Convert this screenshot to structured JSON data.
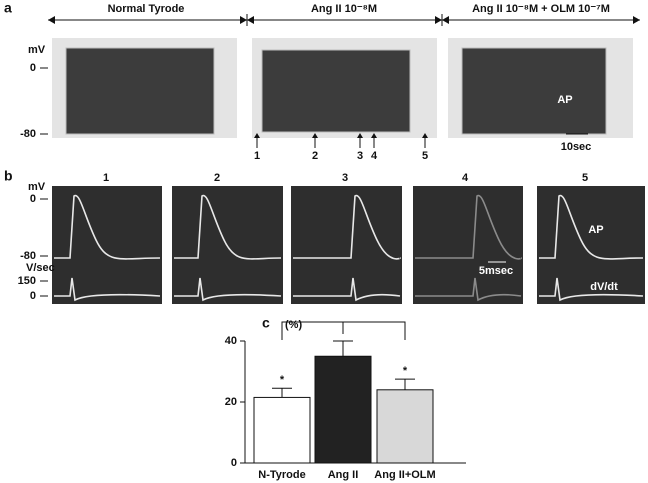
{
  "panel_a": {
    "label": "a",
    "conditions": [
      "Normal Tyrode",
      "Ang II 10⁻⁸M",
      "Ang II 10⁻⁸M + OLM 10⁻⁷M"
    ],
    "y_unit": "mV",
    "y_labels": [
      "0",
      "-80"
    ],
    "markers": [
      "1",
      "2",
      "3",
      "4",
      "5"
    ],
    "trace_label": "AP",
    "scale_bar": "10sec"
  },
  "panel_b": {
    "label": "b",
    "columns": [
      "1",
      "2",
      "3",
      "4",
      "5"
    ],
    "y_unit_top": "mV",
    "y_labels_top": [
      "0",
      "-80"
    ],
    "y_unit_bottom": "V/sec",
    "y_labels_bottom": [
      "150",
      "0"
    ],
    "trace_label_top": "AP",
    "trace_label_bottom": "dV/dt",
    "scale_bar": "5msec"
  },
  "chart_data": {
    "type": "bar",
    "panel_label": "c",
    "y_label": "(%)",
    "categories": [
      "N-Tyrode",
      "Ang II",
      "Ang II+OLM"
    ],
    "values": [
      21.5,
      35,
      24
    ],
    "errors": [
      3,
      5,
      3.5
    ],
    "colors": [
      "#ffffff",
      "#222222",
      "#d8d8d8"
    ],
    "annotations": [
      "*",
      null,
      "*"
    ],
    "ylim": [
      0,
      40
    ],
    "yticks": [
      0,
      20,
      40
    ]
  }
}
